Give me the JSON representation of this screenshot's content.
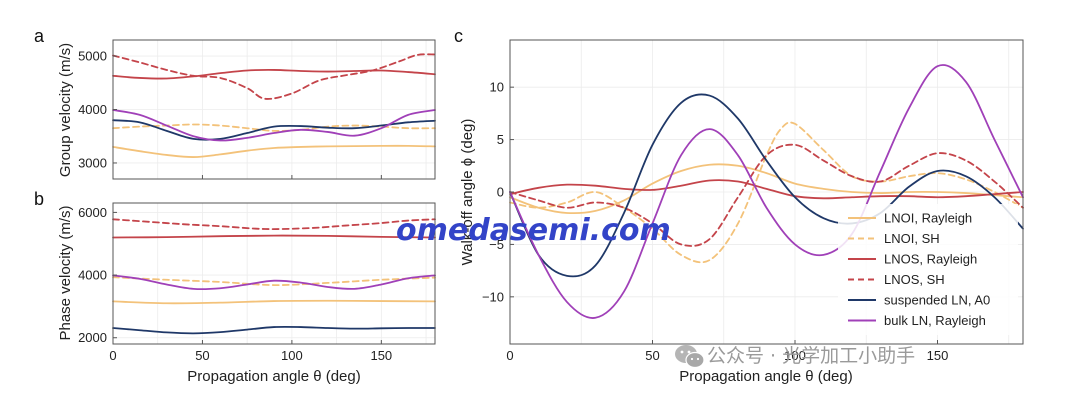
{
  "colors": {
    "lnoi": "#f3c27a",
    "lnos": "#c4444a",
    "suspended": "#1f3868",
    "bulk": "#a040b8"
  },
  "watermark": {
    "text": "omedasemi.com",
    "color": "#3344c8"
  },
  "wechat": {
    "text": "公众号 · 光学加工小助手",
    "icon": "wechat-icon"
  },
  "chart_data": [
    {
      "id": "a",
      "type": "line",
      "panel_label": "a",
      "ylabel": "Group velocity (m/s)",
      "xlabel": "",
      "xlim": [
        0,
        180
      ],
      "ylim": [
        2700,
        5300
      ],
      "xticks": [
        0,
        50,
        100,
        150
      ],
      "xtick_labels": [
        "",
        "",
        "",
        ""
      ],
      "yticks": [
        3000,
        4000,
        5000
      ],
      "ytick_labels": [
        "3000",
        "4000",
        "5000"
      ],
      "grid": true,
      "series": [
        {
          "name": "LNOI, Rayleigh",
          "style": "solid",
          "color_key": "lnoi",
          "x": [
            0,
            15,
            30,
            45,
            60,
            75,
            90,
            105,
            120,
            135,
            150,
            165,
            180
          ],
          "y": [
            3300,
            3220,
            3150,
            3110,
            3160,
            3230,
            3280,
            3300,
            3310,
            3315,
            3320,
            3320,
            3310
          ]
        },
        {
          "name": "LNOI, SH",
          "style": "dashed",
          "color_key": "lnoi",
          "x": [
            0,
            15,
            30,
            45,
            60,
            75,
            90,
            105,
            120,
            135,
            150,
            165,
            180
          ],
          "y": [
            3650,
            3680,
            3700,
            3720,
            3700,
            3650,
            3600,
            3620,
            3680,
            3700,
            3680,
            3650,
            3650
          ]
        },
        {
          "name": "LNOS, Rayleigh",
          "style": "solid",
          "color_key": "lnos",
          "x": [
            0,
            15,
            30,
            45,
            60,
            75,
            90,
            105,
            120,
            135,
            150,
            165,
            180
          ],
          "y": [
            4630,
            4590,
            4580,
            4620,
            4680,
            4730,
            4740,
            4720,
            4710,
            4720,
            4730,
            4700,
            4660
          ]
        },
        {
          "name": "LNOS, SH",
          "style": "dashed",
          "color_key": "lnos",
          "x": [
            0,
            15,
            30,
            45,
            60,
            75,
            85,
            100,
            115,
            130,
            145,
            160,
            170,
            180
          ],
          "y": [
            5010,
            4880,
            4740,
            4630,
            4590,
            4400,
            4200,
            4300,
            4540,
            4640,
            4730,
            4900,
            5020,
            5030
          ]
        },
        {
          "name": "suspended LN, A0",
          "style": "solid",
          "color_key": "suspended",
          "x": [
            0,
            15,
            30,
            45,
            60,
            75,
            90,
            105,
            120,
            135,
            150,
            165,
            180
          ],
          "y": [
            3800,
            3760,
            3600,
            3450,
            3450,
            3560,
            3680,
            3690,
            3660,
            3650,
            3700,
            3760,
            3790
          ]
        },
        {
          "name": "bulk LN, Rayleigh",
          "style": "solid",
          "color_key": "bulk",
          "x": [
            0,
            15,
            30,
            45,
            60,
            75,
            90,
            105,
            120,
            135,
            150,
            165,
            180
          ],
          "y": [
            3990,
            3900,
            3700,
            3500,
            3420,
            3470,
            3560,
            3620,
            3580,
            3510,
            3650,
            3900,
            3990
          ]
        }
      ]
    },
    {
      "id": "b",
      "type": "line",
      "panel_label": "b",
      "ylabel": "Phase velocity (m/s)",
      "xlabel": "Propagation angle θ (deg)",
      "xlim": [
        0,
        180
      ],
      "ylim": [
        1800,
        6300
      ],
      "xticks": [
        0,
        50,
        100,
        150
      ],
      "xtick_labels": [
        "0",
        "50",
        "100",
        "150"
      ],
      "yticks": [
        2000,
        4000,
        6000
      ],
      "ytick_labels": [
        "2000",
        "4000",
        "6000"
      ],
      "grid": true,
      "series": [
        {
          "name": "LNOI, Rayleigh",
          "style": "solid",
          "color_key": "lnoi",
          "x": [
            0,
            30,
            60,
            90,
            120,
            150,
            180
          ],
          "y": [
            3160,
            3100,
            3120,
            3170,
            3180,
            3170,
            3160
          ]
        },
        {
          "name": "LNOI, SH",
          "style": "dashed",
          "color_key": "lnoi",
          "x": [
            0,
            30,
            60,
            90,
            120,
            150,
            180
          ],
          "y": [
            3930,
            3850,
            3780,
            3680,
            3750,
            3850,
            3920
          ]
        },
        {
          "name": "LNOS, Rayleigh",
          "style": "solid",
          "color_key": "lnos",
          "x": [
            0,
            30,
            60,
            90,
            120,
            150,
            180
          ],
          "y": [
            5200,
            5210,
            5240,
            5260,
            5250,
            5220,
            5200
          ]
        },
        {
          "name": "LNOS, SH",
          "style": "dashed",
          "color_key": "lnos",
          "x": [
            0,
            20,
            40,
            60,
            85,
            110,
            130,
            150,
            165,
            180
          ],
          "y": [
            5780,
            5700,
            5620,
            5560,
            5470,
            5500,
            5580,
            5660,
            5740,
            5780
          ]
        },
        {
          "name": "suspended LN, A0",
          "style": "solid",
          "color_key": "suspended",
          "x": [
            0,
            15,
            30,
            45,
            60,
            75,
            90,
            105,
            120,
            135,
            150,
            165,
            180
          ],
          "y": [
            2310,
            2240,
            2170,
            2140,
            2180,
            2260,
            2340,
            2340,
            2310,
            2290,
            2300,
            2310,
            2310
          ]
        },
        {
          "name": "bulk LN, Rayleigh",
          "style": "solid",
          "color_key": "bulk",
          "x": [
            0,
            15,
            30,
            45,
            60,
            75,
            90,
            105,
            120,
            135,
            150,
            165,
            180
          ],
          "y": [
            3990,
            3880,
            3700,
            3560,
            3580,
            3700,
            3820,
            3760,
            3620,
            3560,
            3700,
            3900,
            3990
          ]
        }
      ]
    },
    {
      "id": "c",
      "type": "line",
      "panel_label": "c",
      "ylabel": "Walk-off angle ϕ (deg)",
      "xlabel": "Propagation angle θ (deg)",
      "xlim": [
        0,
        180
      ],
      "ylim": [
        -14.5,
        14.5
      ],
      "xticks": [
        0,
        50,
        100,
        150
      ],
      "xtick_labels": [
        "0",
        "50",
        "100",
        "150"
      ],
      "yticks": [
        -10,
        -5,
        0,
        5,
        10
      ],
      "ytick_labels": [
        "−10",
        "−5",
        "0",
        "5",
        "10"
      ],
      "grid": true,
      "legend": "bottom-right",
      "series": [
        {
          "name": "LNOI, Rayleigh",
          "style": "solid",
          "color_key": "lnoi",
          "x": [
            0,
            10,
            20,
            30,
            40,
            50,
            60,
            70,
            80,
            90,
            100,
            110,
            120,
            130,
            140,
            150,
            160,
            170,
            180
          ],
          "y": [
            -0.5,
            -1.5,
            -2.0,
            -1.8,
            -0.8,
            0.8,
            2.0,
            2.6,
            2.5,
            1.8,
            0.8,
            0.3,
            0.0,
            -0.1,
            0.0,
            0.0,
            -0.1,
            -0.3,
            -0.5
          ]
        },
        {
          "name": "LNOI, SH",
          "style": "dashed",
          "color_key": "lnoi",
          "x": [
            0,
            10,
            20,
            30,
            40,
            50,
            60,
            70,
            80,
            90,
            95,
            100,
            110,
            120,
            130,
            140,
            150,
            160,
            170,
            180
          ],
          "y": [
            -1.0,
            -1.5,
            -1.0,
            0.0,
            -1.5,
            -3.5,
            -6.0,
            -6.5,
            -3.0,
            3.5,
            6.0,
            6.5,
            4.0,
            1.5,
            1.0,
            1.5,
            1.8,
            1.2,
            0.0,
            -1.5
          ]
        },
        {
          "name": "LNOS, Rayleigh",
          "style": "solid",
          "color_key": "lnos",
          "x": [
            0,
            10,
            20,
            30,
            40,
            50,
            60,
            70,
            80,
            90,
            100,
            110,
            120,
            130,
            140,
            150,
            160,
            170,
            180
          ],
          "y": [
            -0.2,
            0.4,
            0.7,
            0.6,
            0.3,
            0.2,
            0.6,
            1.1,
            1.0,
            0.3,
            -0.4,
            -0.6,
            -0.5,
            -0.4,
            -0.4,
            -0.5,
            -0.4,
            -0.2,
            0.0
          ]
        },
        {
          "name": "LNOS, SH",
          "style": "dashed",
          "color_key": "lnos",
          "x": [
            0,
            10,
            20,
            30,
            40,
            50,
            60,
            70,
            80,
            90,
            100,
            110,
            120,
            130,
            140,
            150,
            160,
            170,
            180
          ],
          "y": [
            0.0,
            -0.8,
            -1.5,
            -1.0,
            -1.5,
            -3.0,
            -5.0,
            -4.5,
            -0.5,
            3.5,
            4.5,
            3.0,
            1.5,
            1.0,
            2.5,
            3.7,
            3.0,
            1.0,
            -1.5
          ]
        },
        {
          "name": "suspended LN, A0",
          "style": "solid",
          "color_key": "suspended",
          "x": [
            0,
            10,
            20,
            30,
            40,
            50,
            60,
            70,
            80,
            90,
            100,
            110,
            120,
            130,
            140,
            150,
            160,
            170,
            180
          ],
          "y": [
            0.0,
            -6.0,
            -8.0,
            -7.0,
            -2.0,
            4.5,
            8.5,
            9.2,
            7.0,
            3.0,
            -0.5,
            -2.5,
            -3.0,
            -2.0,
            0.5,
            2.0,
            1.5,
            -0.5,
            -3.5
          ]
        },
        {
          "name": "bulk LN, Rayleigh",
          "style": "solid",
          "color_key": "bulk",
          "x": [
            0,
            10,
            20,
            30,
            40,
            50,
            60,
            70,
            80,
            90,
            100,
            110,
            120,
            130,
            140,
            150,
            160,
            170,
            180
          ],
          "y": [
            0.0,
            -6.0,
            -10.5,
            -12.0,
            -9.5,
            -3.0,
            3.5,
            6.0,
            3.5,
            -1.5,
            -5.0,
            -6.0,
            -4.0,
            2.0,
            8.0,
            12.0,
            10.5,
            5.0,
            -0.5
          ]
        }
      ]
    }
  ]
}
